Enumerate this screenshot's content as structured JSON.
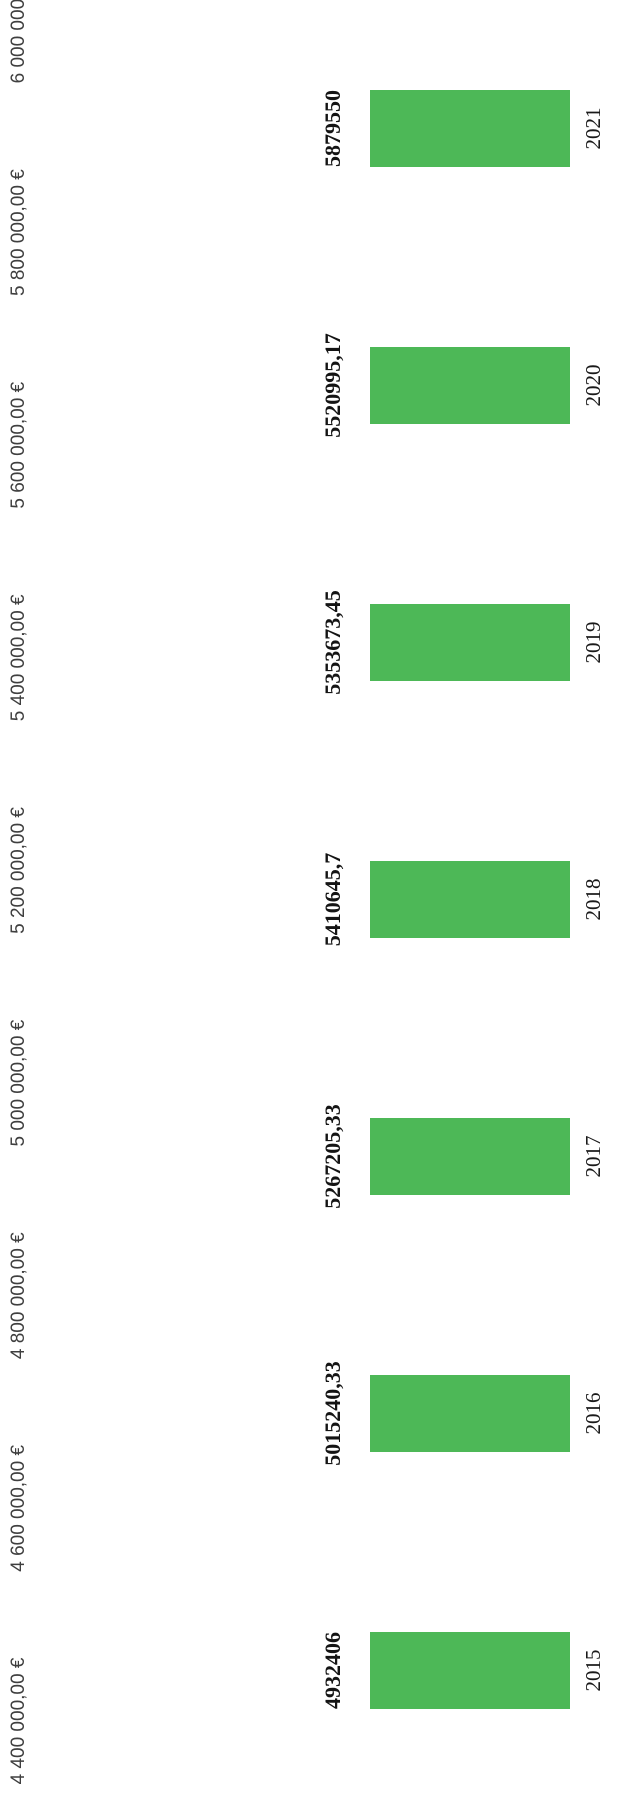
{
  "chart_data": {
    "type": "bar",
    "orientation": "horizontal",
    "categories": [
      "2015",
      "2016",
      "2017",
      "2018",
      "2019",
      "2020",
      "2021"
    ],
    "values": [
      4932406,
      5015240.33,
      5267205.33,
      5410645.7,
      5353673.45,
      5520995.17,
      5879550
    ],
    "value_labels": [
      "4932406",
      "5015240,33",
      "5267205,33",
      "5410645,7",
      "5353673,45",
      "5520995,17",
      "5879550"
    ],
    "ylim": [
      4400000,
      6000000
    ],
    "ticks": [
      {
        "value": 4400000,
        "label": "4 400 000,00 €"
      },
      {
        "value": 4600000,
        "label": "4 600 000,00 €"
      },
      {
        "value": 4800000,
        "label": "4 800 000,00 €"
      },
      {
        "value": 5000000,
        "label": "5 000 000,00 €"
      },
      {
        "value": 5200000,
        "label": "5 200 000,00 €"
      },
      {
        "value": 5400000,
        "label": "5 400 000,00 €"
      },
      {
        "value": 5600000,
        "label": "5 600 000,00 €"
      },
      {
        "value": 5800000,
        "label": "5 800 000,00 €"
      },
      {
        "value": 6000000,
        "label": "6 000 000,00 €"
      }
    ],
    "title": "",
    "xlabel": "",
    "ylabel": "",
    "grid": false,
    "legend": "none",
    "bar_color": "#4db857"
  }
}
